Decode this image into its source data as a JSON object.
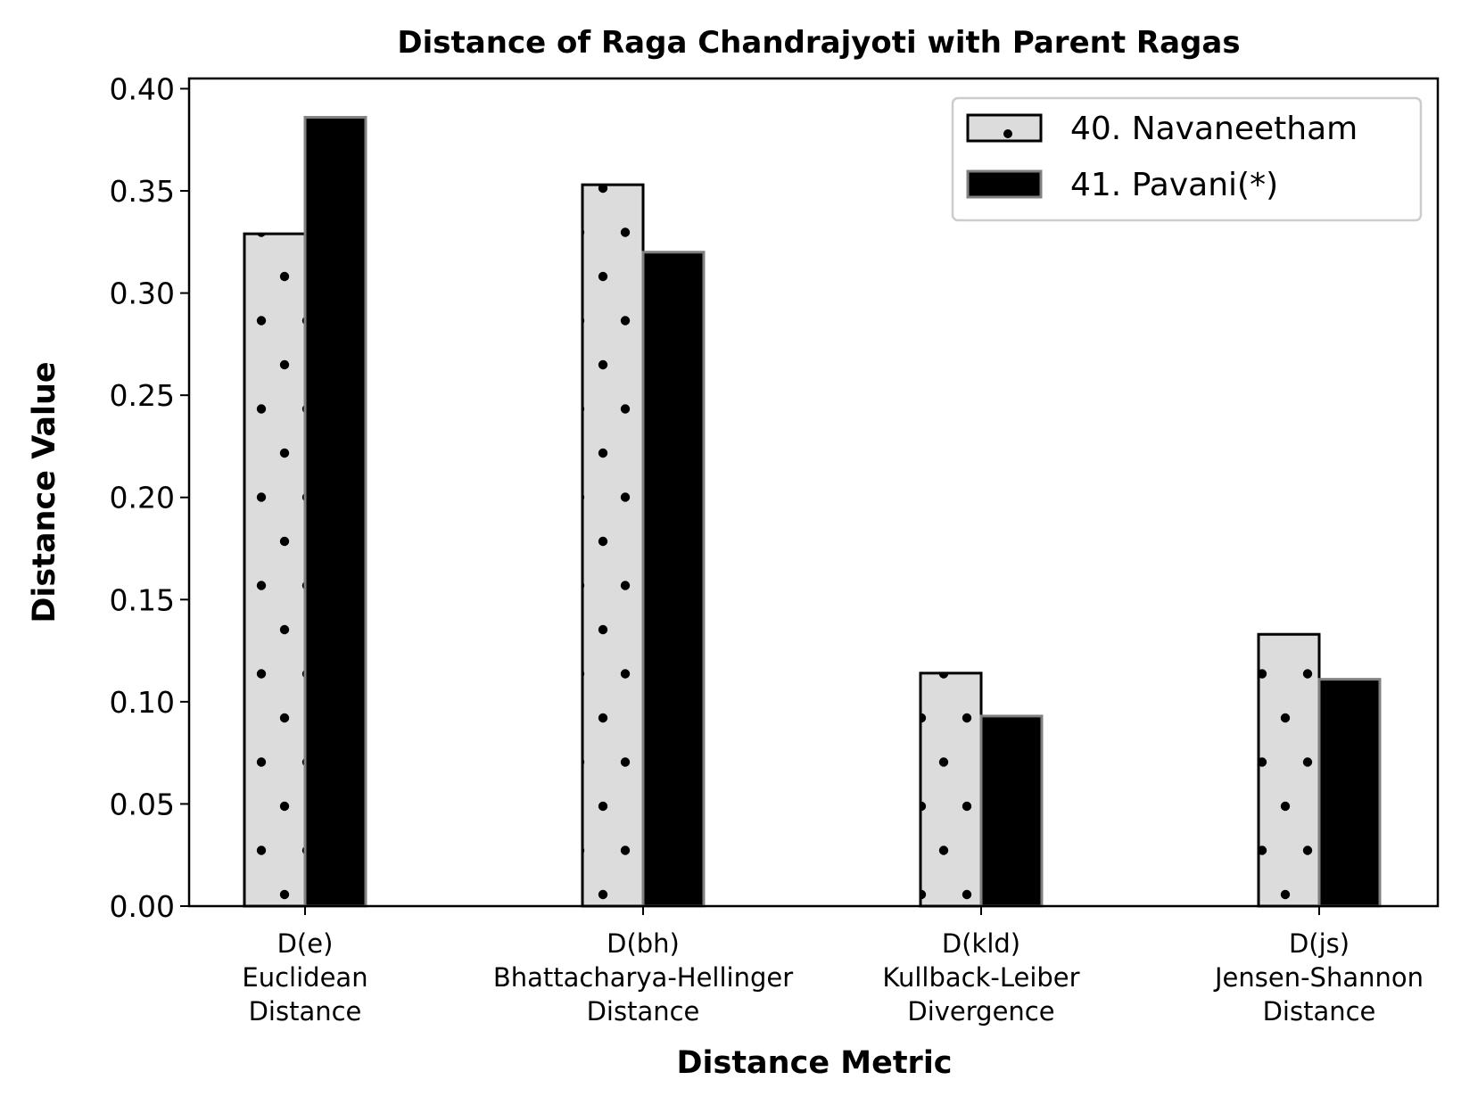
{
  "chart_data": {
    "type": "bar",
    "title": "Distance of Raga Chandrajyoti with Parent Ragas",
    "xlabel": "Distance Metric",
    "ylabel": "Distance Value",
    "ylim": [
      0,
      0.405
    ],
    "yticks": [
      "0.00",
      "0.05",
      "0.10",
      "0.15",
      "0.20",
      "0.25",
      "0.30",
      "0.35",
      "0.40"
    ],
    "categories": [
      [
        "D(e)",
        "Euclidean",
        "Distance"
      ],
      [
        "D(bh)",
        "Bhattacharya-Hellinger",
        "Distance"
      ],
      [
        "D(kld)",
        "Kullback-Leiber",
        "Divergence"
      ],
      [
        "D(js)",
        "Jensen-Shannon",
        "Distance"
      ]
    ],
    "series": [
      {
        "name": "40. Navaneetham",
        "values": [
          0.329,
          0.353,
          0.114,
          0.133
        ],
        "fill": "#dcdcdc",
        "edge": "#000000",
        "hatch": "dots"
      },
      {
        "name": "41. Pavani(*)",
        "values": [
          0.386,
          0.32,
          0.093,
          0.111
        ],
        "fill": "#000000",
        "edge": "#808080",
        "hatch": "none"
      }
    ],
    "legend_position": "top-right",
    "grid": false
  }
}
